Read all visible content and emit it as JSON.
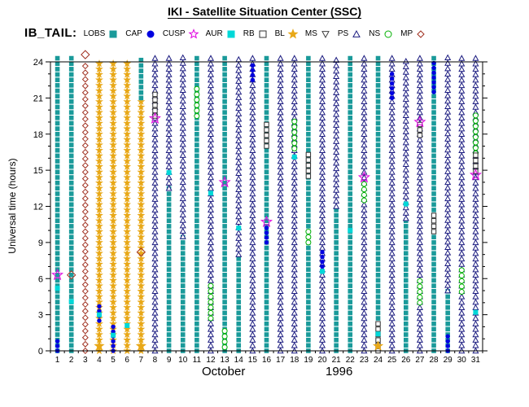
{
  "header": {
    "title": "IKI - Satellite Situation Center (SSC)",
    "dataset_label": "IB_TAIL:"
  },
  "chart_data": {
    "type": "scatter",
    "title": "IKI - Satellite Situation Center (SSC)",
    "dataset_label": "IB_TAIL:",
    "xlabel_month": "October",
    "xlabel_year": "1996",
    "ylabel": "Universal time (hours)",
    "ylim": [
      0,
      24
    ],
    "xlim": [
      1,
      31
    ],
    "grid": false,
    "legend_position": "top",
    "y_major_ticks": [
      0,
      3,
      6,
      9,
      12,
      15,
      18,
      21,
      24
    ],
    "x_ticks": [
      1,
      2,
      3,
      4,
      5,
      6,
      7,
      8,
      9,
      10,
      11,
      12,
      13,
      14,
      15,
      16,
      17,
      18,
      19,
      20,
      21,
      22,
      23,
      24,
      25,
      26,
      27,
      28,
      29,
      30,
      31
    ],
    "legend": [
      {
        "label": "LOBS",
        "symbol": "square",
        "open": false,
        "color": "#1a9a9a"
      },
      {
        "label": "CAP",
        "symbol": "circle",
        "open": false,
        "color": "#0000e0"
      },
      {
        "label": "CUSP",
        "symbol": "star",
        "open": true,
        "color": "#e000e0"
      },
      {
        "label": "AUR",
        "symbol": "square",
        "open": false,
        "color": "#00d8d8"
      },
      {
        "label": "RB",
        "symbol": "square",
        "open": true,
        "color": "#303030"
      },
      {
        "label": "BL",
        "symbol": "star",
        "open": false,
        "color": "#e8a818"
      },
      {
        "label": "MS",
        "symbol": "triangle-down",
        "open": true,
        "color": "#404040"
      },
      {
        "label": "PS",
        "symbol": "triangle-up",
        "open": true,
        "color": "#1c1c80"
      },
      {
        "label": "NS",
        "symbol": "circle",
        "open": true,
        "color": "#00b000"
      },
      {
        "label": "MP",
        "symbol": "diamond",
        "open": true,
        "color": "#a03020"
      }
    ],
    "days": [
      {
        "d": 1,
        "segs": [
          [
            "LOBS",
            0,
            24.4
          ],
          [
            "CAP",
            0,
            0.9
          ]
        ],
        "marks": [
          [
            "AUR",
            5.2
          ],
          [
            "CUSP",
            6.3
          ]
        ]
      },
      {
        "d": 2,
        "segs": [
          [
            "LOBS",
            0,
            24.4
          ]
        ],
        "marks": [
          [
            "AUR",
            4.1
          ],
          [
            "MP",
            6.3
          ]
        ]
      },
      {
        "d": 3,
        "segs": [
          [
            "MP",
            0,
            24.0
          ]
        ],
        "marks": [
          [
            "MP",
            24.6
          ]
        ]
      },
      {
        "d": 4,
        "segs": [
          [
            "BL",
            0,
            24.2
          ],
          [
            "CAP",
            2.5,
            4.0
          ]
        ],
        "marks": [
          [
            "AUR",
            3.0
          ],
          [
            "BL",
            0.4
          ]
        ]
      },
      {
        "d": 5,
        "segs": [
          [
            "BL",
            0,
            24.2
          ],
          [
            "CAP",
            0,
            2.2
          ]
        ],
        "marks": [
          [
            "AUR",
            1.3
          ]
        ]
      },
      {
        "d": 6,
        "segs": [
          [
            "BL",
            0,
            24.2
          ]
        ],
        "marks": [
          [
            "AUR",
            2.1
          ]
        ]
      },
      {
        "d": 7,
        "segs": [
          [
            "BL",
            0,
            21
          ],
          [
            "LOBS",
            21,
            24.4
          ]
        ],
        "marks": [
          [
            "MP",
            8.2
          ],
          [
            "BL",
            0.4
          ]
        ]
      },
      {
        "d": 8,
        "segs": [
          [
            "PS",
            0,
            24.4
          ],
          [
            "RB",
            19.5,
            21.6
          ]
        ],
        "marks": [
          [
            "CUSP",
            19.3
          ]
        ]
      },
      {
        "d": 9,
        "segs": [
          [
            "LOBS",
            0,
            13.5
          ],
          [
            "PS",
            13.5,
            24.4
          ]
        ],
        "marks": [
          [
            "AUR",
            14.8
          ]
        ]
      },
      {
        "d": 10,
        "segs": [
          [
            "LOBS",
            0,
            9.5
          ],
          [
            "PS",
            9.5,
            24.4
          ]
        ],
        "marks": []
      },
      {
        "d": 11,
        "segs": [
          [
            "LOBS",
            0,
            24.4
          ],
          [
            "NS",
            19.5,
            21.8
          ]
        ],
        "marks": []
      },
      {
        "d": 12,
        "segs": [
          [
            "PS",
            0,
            24.4
          ],
          [
            "NS",
            2.7,
            5.8
          ]
        ],
        "marks": [
          [
            "AUR",
            13.1
          ]
        ]
      },
      {
        "d": 13,
        "segs": [
          [
            "LOBS",
            0,
            24.4
          ],
          [
            "NS",
            0.3,
            1.8
          ]
        ],
        "marks": [
          [
            "CUSP",
            14.0
          ]
        ]
      },
      {
        "d": 14,
        "segs": [
          [
            "LOBS",
            0,
            8
          ],
          [
            "PS",
            8,
            24.4
          ]
        ],
        "marks": [
          [
            "AUR",
            10.2
          ]
        ]
      },
      {
        "d": 15,
        "segs": [
          [
            "PS",
            0,
            24.4
          ],
          [
            "CAP",
            22.5,
            24
          ]
        ],
        "marks": []
      },
      {
        "d": 16,
        "segs": [
          [
            "LOBS",
            0,
            24.4
          ],
          [
            "RB",
            17,
            19.2
          ],
          [
            "CAP",
            9,
            10.3
          ]
        ],
        "marks": [
          [
            "CUSP",
            10.7
          ]
        ]
      },
      {
        "d": 17,
        "segs": [
          [
            "PS",
            0,
            24.4
          ]
        ],
        "marks": []
      },
      {
        "d": 18,
        "segs": [
          [
            "PS",
            0,
            24.4
          ],
          [
            "NS",
            16.8,
            19.2
          ]
        ],
        "marks": [
          [
            "AUR",
            16.1
          ]
        ]
      },
      {
        "d": 19,
        "segs": [
          [
            "LOBS",
            0,
            24.4
          ],
          [
            "RB",
            14.5,
            16.3
          ],
          [
            "NS",
            9,
            10.2
          ]
        ],
        "marks": []
      },
      {
        "d": 20,
        "segs": [
          [
            "PS",
            0,
            24.4
          ],
          [
            "CAP",
            7,
            8.3
          ]
        ],
        "marks": [
          [
            "AUR",
            6.6
          ]
        ]
      },
      {
        "d": 21,
        "segs": [
          [
            "LOBS",
            0,
            12
          ],
          [
            "PS",
            12,
            24.4
          ]
        ],
        "marks": []
      },
      {
        "d": 22,
        "segs": [
          [
            "LOBS",
            0,
            24.4
          ]
        ],
        "marks": [
          [
            "AUR",
            10.0
          ]
        ]
      },
      {
        "d": 23,
        "segs": [
          [
            "PS",
            0,
            24.4
          ],
          [
            "NS",
            12.5,
            14.0
          ]
        ],
        "marks": [
          [
            "CUSP",
            14.4
          ]
        ]
      },
      {
        "d": 24,
        "segs": [
          [
            "LOBS",
            0,
            24.4
          ],
          [
            "RB",
            0,
            2.3
          ]
        ],
        "marks": [
          [
            "AUR",
            1.4
          ],
          [
            "BL",
            0.4
          ]
        ]
      },
      {
        "d": 25,
        "segs": [
          [
            "PS",
            0,
            24.4
          ],
          [
            "CAP",
            21,
            23
          ]
        ],
        "marks": []
      },
      {
        "d": 26,
        "segs": [
          [
            "LOBS",
            0,
            11
          ],
          [
            "PS",
            11,
            24.4
          ]
        ],
        "marks": [
          [
            "AUR",
            12.2
          ]
        ]
      },
      {
        "d": 27,
        "segs": [
          [
            "PS",
            0,
            24.4
          ],
          [
            "NS",
            4,
            6.2
          ],
          [
            "RB",
            17.9,
            19.2
          ]
        ],
        "marks": [
          [
            "CUSP",
            19.0
          ]
        ]
      },
      {
        "d": 28,
        "segs": [
          [
            "LOBS",
            0,
            24.4
          ],
          [
            "CAP",
            21.5,
            24
          ],
          [
            "RB",
            9.9,
            11.3
          ]
        ],
        "marks": []
      },
      {
        "d": 29,
        "segs": [
          [
            "LOBS",
            0,
            5
          ],
          [
            "PS",
            5,
            24.4
          ],
          [
            "CAP",
            0,
            1.2
          ]
        ],
        "marks": []
      },
      {
        "d": 30,
        "segs": [
          [
            "PS",
            0,
            24.4
          ],
          [
            "NS",
            4.9,
            6.7
          ]
        ],
        "marks": []
      },
      {
        "d": 31,
        "segs": [
          [
            "PS",
            0,
            24.4
          ],
          [
            "NS",
            16.4,
            19.6
          ],
          [
            "RB",
            14.9,
            16.3
          ]
        ],
        "marks": [
          [
            "CUSP",
            14.6
          ],
          [
            "AUR",
            3.2
          ]
        ]
      }
    ]
  }
}
